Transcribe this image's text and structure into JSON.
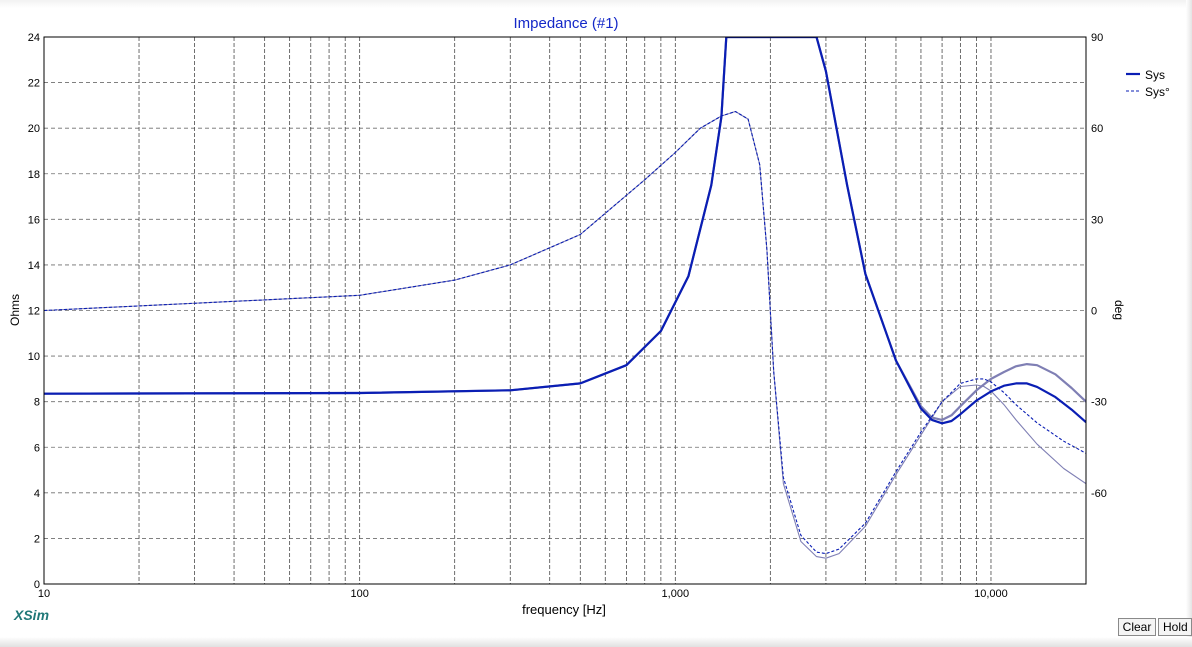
{
  "chart_data": {
    "type": "line",
    "title": "Impedance (#1)",
    "xlabel": "frequency [Hz]",
    "ylabel": "Ohms",
    "y2label": "deg",
    "xscale": "log",
    "xlim": [
      10,
      20000
    ],
    "ylim": [
      0,
      24
    ],
    "y2lim": [
      -90,
      90
    ],
    "grid": true,
    "legend_position": "top-right",
    "x_tick_labels": [
      {
        "value": 10,
        "label": "10"
      },
      {
        "value": 100,
        "label": "100"
      },
      {
        "value": 1000,
        "label": "1,000"
      },
      {
        "value": 10000,
        "label": "10,000"
      }
    ],
    "y_ticks": [
      0,
      2,
      4,
      6,
      8,
      10,
      12,
      14,
      16,
      18,
      20,
      22,
      24
    ],
    "y2_ticks": [
      90,
      60,
      30,
      0,
      -30,
      -60
    ],
    "series": [
      {
        "name": "Sys",
        "axis": "left",
        "style": "solid-bold",
        "color": "#0a1eb4",
        "x": [
          10,
          100,
          300,
          500,
          700,
          900,
          1100,
          1300,
          1400,
          1450,
          2800,
          3000,
          3500,
          4000,
          5000,
          6000,
          6500,
          7000,
          7500,
          8000,
          9000,
          10000,
          11000,
          12000,
          13000,
          14000,
          16000,
          18000,
          20000
        ],
        "y": [
          8.35,
          8.38,
          8.5,
          8.8,
          9.6,
          11.1,
          13.5,
          17.5,
          20.5,
          24,
          24,
          22.5,
          17.5,
          13.6,
          9.8,
          7.7,
          7.2,
          7.05,
          7.15,
          7.45,
          8.05,
          8.45,
          8.7,
          8.8,
          8.8,
          8.65,
          8.2,
          7.65,
          7.1
        ]
      },
      {
        "name": "Sys°",
        "axis": "right",
        "style": "dashed",
        "color": "#0a1eb4",
        "x": [
          10,
          100,
          200,
          300,
          500,
          800,
          1000,
          1200,
          1400,
          1550,
          1700,
          1850,
          1950,
          2050,
          2200,
          2500,
          2800,
          3000,
          3300,
          4000,
          5000,
          6000,
          7000,
          8000,
          9000,
          9500,
          10000,
          11000,
          12000,
          14000,
          17000,
          20000
        ],
        "y": [
          0,
          5,
          10,
          15,
          25,
          43,
          52,
          60,
          64,
          65.5,
          63,
          48,
          20,
          -20,
          -55,
          -74,
          -79.5,
          -80,
          -78.5,
          -70,
          -53,
          -40,
          -30,
          -24,
          -22.5,
          -22.5,
          -23.5,
          -27,
          -31,
          -37,
          -43,
          -47
        ]
      },
      {
        "name": "",
        "axis": "left",
        "style": "reference-thick",
        "color": "#7f7fb4",
        "x": [
          10,
          100,
          300,
          500,
          700,
          900,
          1100,
          1300,
          1400,
          1450,
          2800,
          3000,
          3500,
          4000,
          5000,
          6000,
          6500,
          7000,
          7500,
          8000,
          9000,
          10000,
          11000,
          12000,
          13000,
          14000,
          16000,
          18000,
          20000
        ],
        "y": [
          8.35,
          8.38,
          8.5,
          8.8,
          9.6,
          11.1,
          13.5,
          17.5,
          20.5,
          24,
          24,
          22.5,
          17.5,
          13.6,
          9.8,
          7.8,
          7.3,
          7.2,
          7.4,
          7.8,
          8.5,
          9.0,
          9.3,
          9.55,
          9.65,
          9.6,
          9.2,
          8.6,
          8.0
        ]
      },
      {
        "name": "",
        "axis": "right",
        "style": "reference-thin",
        "color": "#7f7fb4",
        "x": [
          10,
          100,
          200,
          300,
          500,
          800,
          1000,
          1200,
          1400,
          1550,
          1700,
          1850,
          1950,
          2050,
          2200,
          2500,
          2800,
          3000,
          3300,
          4000,
          5000,
          6000,
          7000,
          8000,
          9000,
          9500,
          10000,
          11000,
          12000,
          14000,
          17000,
          20000
        ],
        "y": [
          0,
          5,
          10,
          15,
          25,
          43,
          52,
          60,
          64,
          65.5,
          63,
          48,
          20,
          -20,
          -57,
          -76,
          -81,
          -81.5,
          -80,
          -71,
          -54,
          -41,
          -30,
          -25,
          -24.5,
          -25,
          -26.5,
          -31,
          -36,
          -44,
          -52,
          -57
        ]
      }
    ]
  },
  "window": {
    "brand": "XSim",
    "clear_label": "Clear",
    "hold_label": "Hold",
    "colors": {
      "title": "#1428c8",
      "brand": "#207878",
      "series": "#0a1eb4",
      "reference": "#7f7fb4"
    }
  }
}
